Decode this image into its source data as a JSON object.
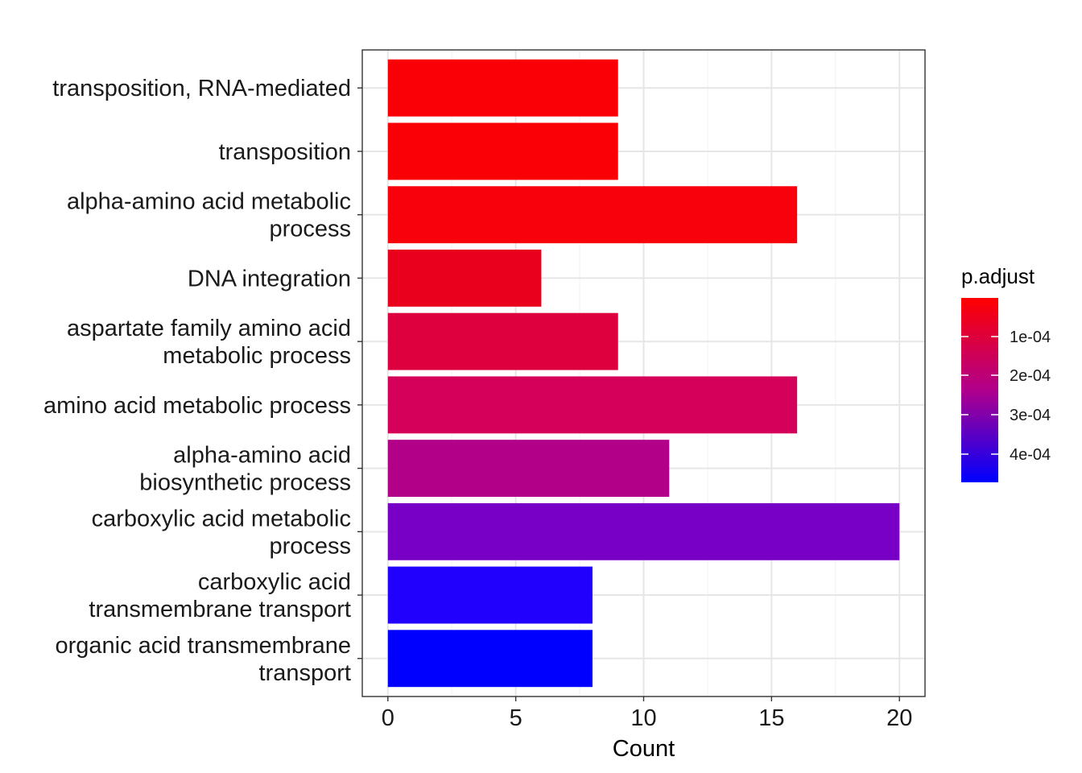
{
  "chart_data": {
    "type": "bar",
    "orientation": "horizontal",
    "categories": [
      [
        "transposition, RNA-mediated"
      ],
      [
        "transposition"
      ],
      [
        "alpha-amino acid metabolic",
        "process"
      ],
      [
        "DNA integration"
      ],
      [
        "aspartate family amino acid",
        "metabolic process"
      ],
      [
        "amino acid metabolic process"
      ],
      [
        "alpha-amino acid",
        "biosynthetic process"
      ],
      [
        "carboxylic acid metabolic",
        "process"
      ],
      [
        "carboxylic acid",
        "transmembrane transport"
      ],
      [
        "organic acid transmembrane",
        "transport"
      ]
    ],
    "values": [
      9,
      9,
      16,
      6,
      9,
      16,
      11,
      20,
      8,
      8
    ],
    "bar_colors": [
      "#FA0006",
      "#FA0006",
      "#F8000C",
      "#E8001C",
      "#DE003E",
      "#D5005A",
      "#B30088",
      "#7800C6",
      "#2200FE",
      "#0000FF"
    ],
    "xlabel": "Count",
    "ylabel": "",
    "xlim": [
      -1,
      21
    ],
    "xticks": [
      0,
      5,
      10,
      15,
      20
    ],
    "grid": true,
    "legend": {
      "title": "p.adjust",
      "placement": "right",
      "colors": [
        "#FF0000",
        "#0000FF"
      ],
      "ticks": [
        "1e-04",
        "2e-04",
        "3e-04",
        "4e-04"
      ]
    }
  }
}
